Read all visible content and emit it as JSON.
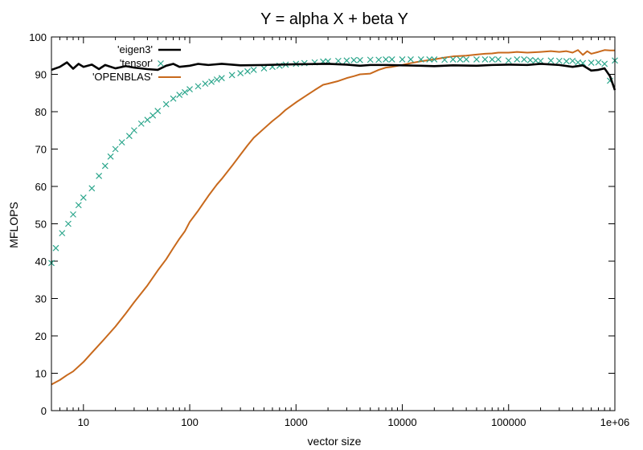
{
  "chart_data": {
    "type": "line",
    "title": "Y = alpha X + beta Y",
    "xlabel": "vector size",
    "ylabel": "MFLOPS",
    "xscale": "log",
    "xlim": [
      5,
      1000000
    ],
    "ylim": [
      0,
      100
    ],
    "x_ticks": [
      {
        "value": 10,
        "label": "10"
      },
      {
        "value": 100,
        "label": "100"
      },
      {
        "value": 1000,
        "label": "1000"
      },
      {
        "value": 10000,
        "label": "10000"
      },
      {
        "value": 100000,
        "label": "100000"
      },
      {
        "value": 1000000,
        "label": "1e+06"
      }
    ],
    "y_ticks": [
      0,
      10,
      20,
      30,
      40,
      50,
      60,
      70,
      80,
      90,
      100
    ],
    "grid": false,
    "legend_position": "top-left",
    "series": [
      {
        "name": "'eigen3'",
        "color": "#000000",
        "style": "line",
        "points": [
          [
            5,
            91.2
          ],
          [
            6,
            92.0
          ],
          [
            7,
            93.2
          ],
          [
            8,
            91.5
          ],
          [
            9,
            92.8
          ],
          [
            10,
            92.0
          ],
          [
            12,
            92.6
          ],
          [
            14,
            91.4
          ],
          [
            16,
            92.5
          ],
          [
            20,
            91.6
          ],
          [
            25,
            92.2
          ],
          [
            30,
            91.8
          ],
          [
            40,
            91.4
          ],
          [
            50,
            91.2
          ],
          [
            60,
            92.3
          ],
          [
            70,
            92.8
          ],
          [
            80,
            92.0
          ],
          [
            100,
            92.3
          ],
          [
            120,
            92.8
          ],
          [
            150,
            92.5
          ],
          [
            200,
            92.8
          ],
          [
            300,
            92.4
          ],
          [
            500,
            92.5
          ],
          [
            1000,
            92.7
          ],
          [
            2000,
            92.8
          ],
          [
            3000,
            92.6
          ],
          [
            4000,
            92.3
          ],
          [
            5000,
            92.5
          ],
          [
            7000,
            92.5
          ],
          [
            10000,
            92.4
          ],
          [
            15000,
            92.3
          ],
          [
            20000,
            92.2
          ],
          [
            30000,
            92.4
          ],
          [
            50000,
            92.3
          ],
          [
            70000,
            92.5
          ],
          [
            100000,
            92.6
          ],
          [
            150000,
            92.5
          ],
          [
            200000,
            92.8
          ],
          [
            300000,
            92.5
          ],
          [
            400000,
            92.0
          ],
          [
            500000,
            92.4
          ],
          [
            600000,
            91.0
          ],
          [
            700000,
            91.2
          ],
          [
            800000,
            91.6
          ],
          [
            900000,
            89.5
          ],
          [
            1000000,
            85.8
          ]
        ]
      },
      {
        "name": "'tensor'",
        "color": "#2ca68c",
        "style": "points",
        "points": [
          [
            5,
            39.5
          ],
          [
            5.5,
            43.5
          ],
          [
            6.3,
            47.5
          ],
          [
            7.2,
            50
          ],
          [
            8,
            52.5
          ],
          [
            9,
            55
          ],
          [
            10,
            57
          ],
          [
            12,
            59.5
          ],
          [
            14,
            62.8
          ],
          [
            16,
            65.5
          ],
          [
            18,
            68
          ],
          [
            20,
            70
          ],
          [
            23,
            71.8
          ],
          [
            27,
            73.5
          ],
          [
            30,
            75
          ],
          [
            35,
            76.8
          ],
          [
            40,
            77.8
          ],
          [
            45,
            79
          ],
          [
            50,
            80.2
          ],
          [
            60,
            82
          ],
          [
            70,
            83.5
          ],
          [
            80,
            84.5
          ],
          [
            90,
            85.2
          ],
          [
            100,
            86
          ],
          [
            120,
            86.8
          ],
          [
            140,
            87.5
          ],
          [
            160,
            88
          ],
          [
            180,
            88.6
          ],
          [
            200,
            89
          ],
          [
            250,
            89.8
          ],
          [
            300,
            90.3
          ],
          [
            350,
            90.8
          ],
          [
            400,
            91.2
          ],
          [
            500,
            91.6
          ],
          [
            600,
            92
          ],
          [
            700,
            92.3
          ],
          [
            800,
            92.6
          ],
          [
            1000,
            92.8
          ],
          [
            1200,
            93
          ],
          [
            1500,
            93.2
          ],
          [
            1800,
            93.4
          ],
          [
            2000,
            93.5
          ],
          [
            2500,
            93.6
          ],
          [
            3000,
            93.7
          ],
          [
            3500,
            93.8
          ],
          [
            4000,
            93.8
          ],
          [
            5000,
            93.9
          ],
          [
            6000,
            93.9
          ],
          [
            7000,
            94
          ],
          [
            8000,
            94
          ],
          [
            10000,
            94
          ],
          [
            12000,
            94
          ],
          [
            15000,
            94
          ],
          [
            18000,
            94
          ],
          [
            20000,
            94
          ],
          [
            25000,
            93.9
          ],
          [
            30000,
            94
          ],
          [
            35000,
            94
          ],
          [
            40000,
            94
          ],
          [
            50000,
            94
          ],
          [
            60000,
            94
          ],
          [
            70000,
            94
          ],
          [
            80000,
            94
          ],
          [
            100000,
            93.7
          ],
          [
            120000,
            94
          ],
          [
            140000,
            94
          ],
          [
            160000,
            93.8
          ],
          [
            180000,
            93.7
          ],
          [
            200000,
            93.6
          ],
          [
            250000,
            93.7
          ],
          [
            300000,
            93.6
          ],
          [
            350000,
            93.5
          ],
          [
            400000,
            93.6
          ],
          [
            450000,
            93.2
          ],
          [
            500000,
            93
          ],
          [
            600000,
            93.1
          ],
          [
            700000,
            93.2
          ],
          [
            800000,
            92.8
          ],
          [
            900000,
            88.3
          ],
          [
            1000000,
            93.7
          ]
        ]
      },
      {
        "name": "'OPENBLAS'",
        "color": "#c8691c",
        "style": "line",
        "points": [
          [
            5,
            7
          ],
          [
            6,
            8.2
          ],
          [
            7,
            9.5
          ],
          [
            8,
            10.5
          ],
          [
            10,
            13
          ],
          [
            12,
            15.5
          ],
          [
            15,
            18.5
          ],
          [
            20,
            22.5
          ],
          [
            25,
            26
          ],
          [
            30,
            29
          ],
          [
            40,
            33.5
          ],
          [
            50,
            37.5
          ],
          [
            60,
            40.5
          ],
          [
            70,
            43.5
          ],
          [
            80,
            46
          ],
          [
            90,
            48
          ],
          [
            100,
            50.5
          ],
          [
            120,
            53.5
          ],
          [
            150,
            57.5
          ],
          [
            180,
            60.5
          ],
          [
            200,
            62
          ],
          [
            250,
            65.5
          ],
          [
            300,
            68.5
          ],
          [
            350,
            71
          ],
          [
            400,
            73
          ],
          [
            500,
            75.5
          ],
          [
            600,
            77.5
          ],
          [
            700,
            79
          ],
          [
            800,
            80.5
          ],
          [
            1000,
            82.5
          ],
          [
            1200,
            84
          ],
          [
            1500,
            85.8
          ],
          [
            1800,
            87.2
          ],
          [
            2000,
            87.5
          ],
          [
            2500,
            88.2
          ],
          [
            3000,
            89
          ],
          [
            3500,
            89.5
          ],
          [
            4000,
            90
          ],
          [
            5000,
            90.2
          ],
          [
            6000,
            91.2
          ],
          [
            7000,
            91.8
          ],
          [
            8000,
            92
          ],
          [
            10000,
            92.5
          ],
          [
            12000,
            93
          ],
          [
            15000,
            93.5
          ],
          [
            20000,
            94
          ],
          [
            25000,
            94.5
          ],
          [
            30000,
            94.8
          ],
          [
            40000,
            95
          ],
          [
            50000,
            95.3
          ],
          [
            60000,
            95.5
          ],
          [
            70000,
            95.6
          ],
          [
            80000,
            95.8
          ],
          [
            100000,
            95.8
          ],
          [
            120000,
            96
          ],
          [
            150000,
            95.8
          ],
          [
            200000,
            96
          ],
          [
            250000,
            96.2
          ],
          [
            300000,
            96
          ],
          [
            350000,
            96.2
          ],
          [
            400000,
            95.8
          ],
          [
            450000,
            96.5
          ],
          [
            500000,
            95.2
          ],
          [
            550000,
            96.2
          ],
          [
            600000,
            95.5
          ],
          [
            700000,
            96
          ],
          [
            800000,
            96.5
          ],
          [
            900000,
            96.4
          ],
          [
            1000000,
            96.4
          ]
        ]
      }
    ]
  }
}
